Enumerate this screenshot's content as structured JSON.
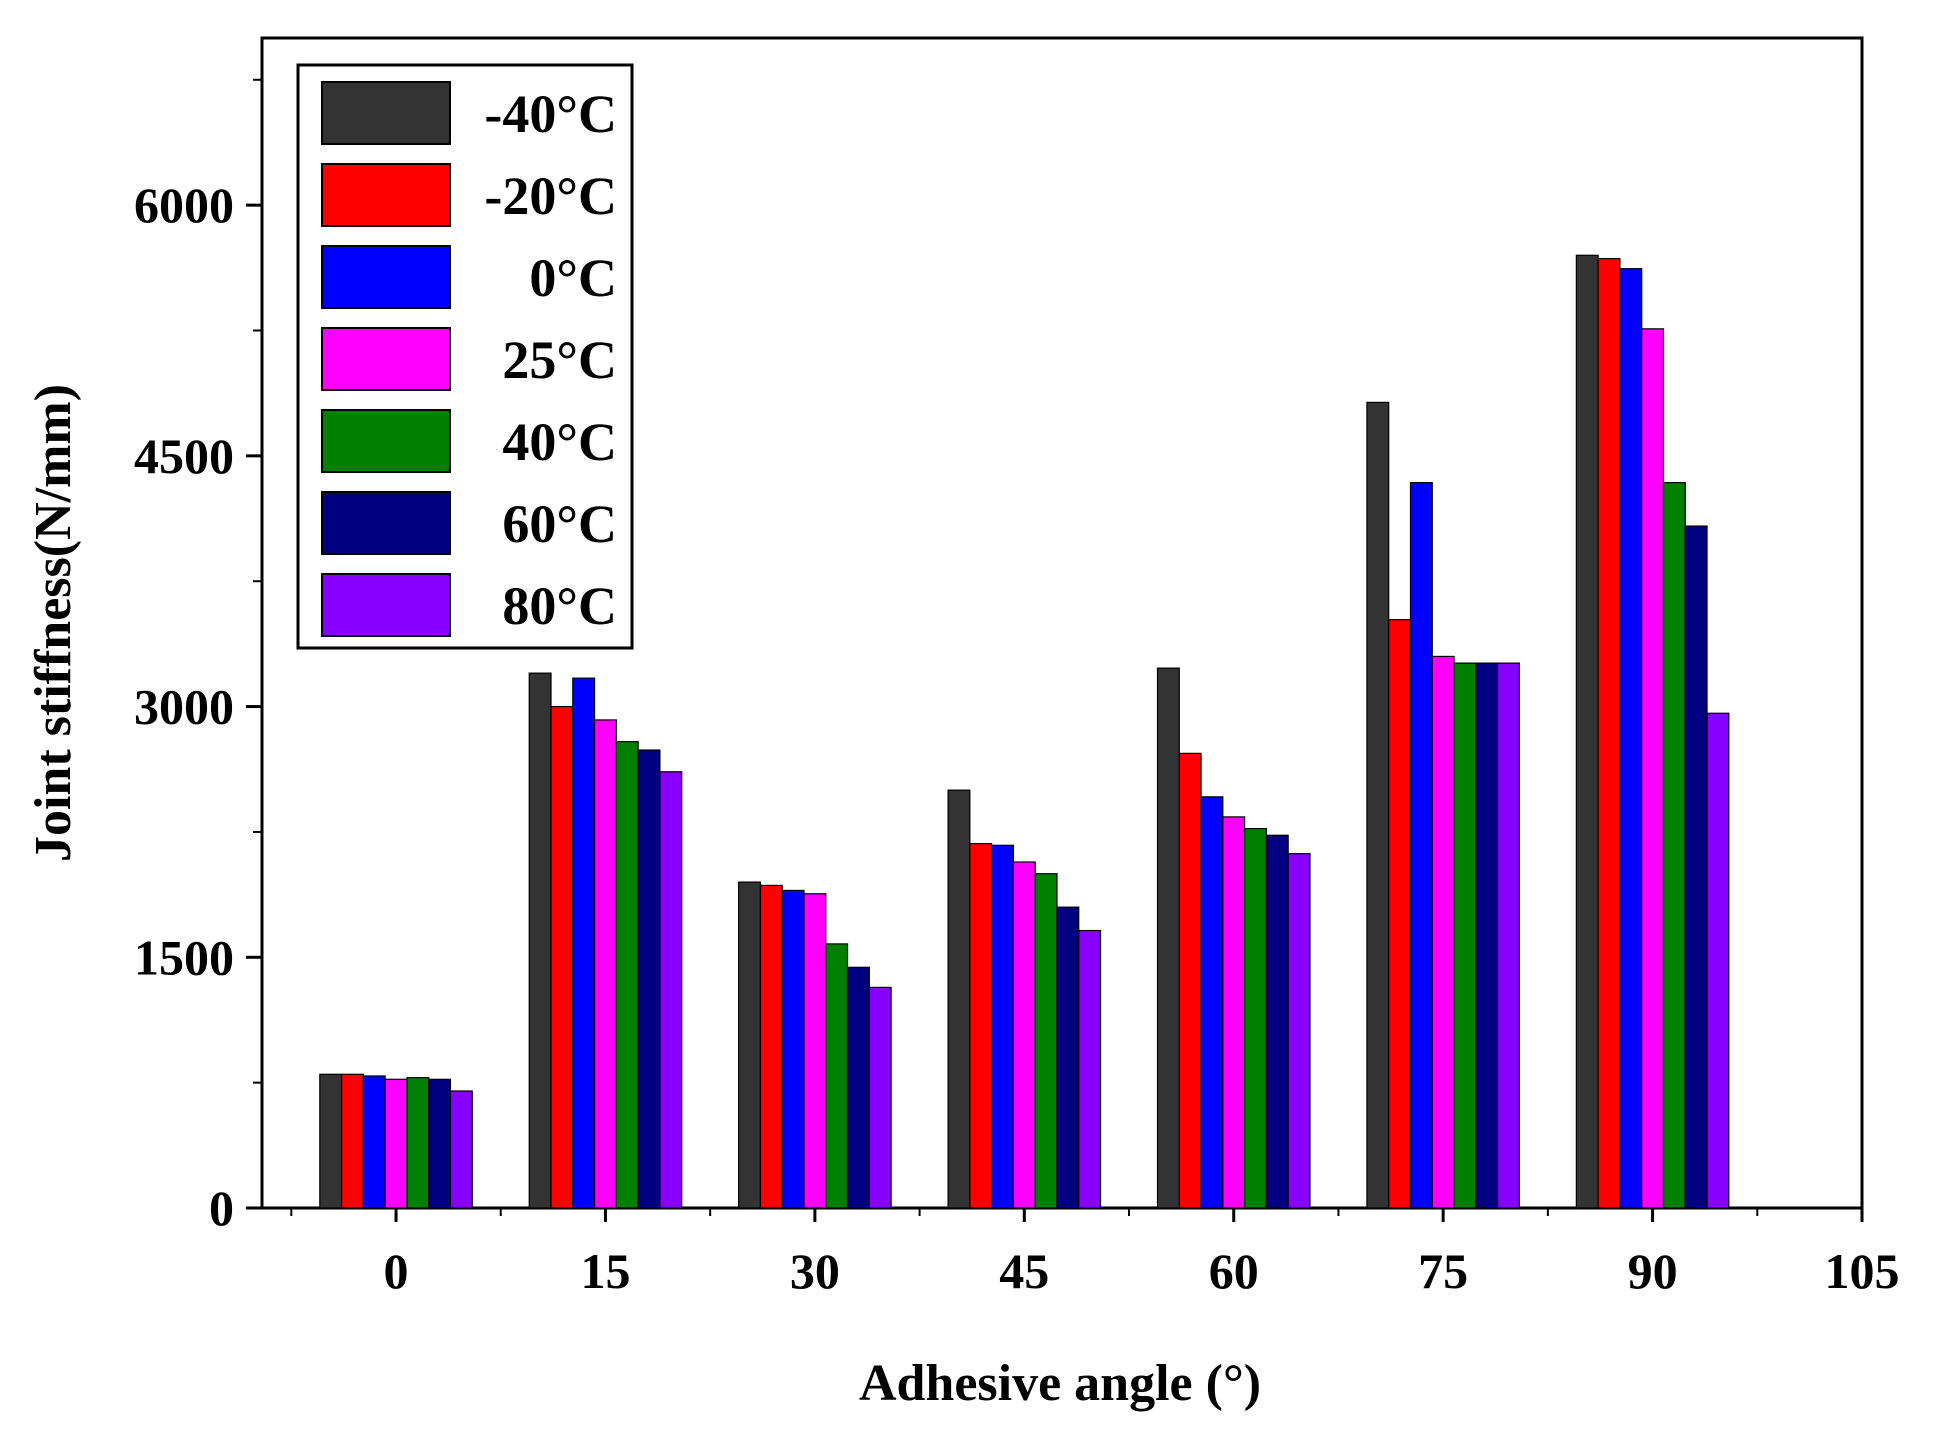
{
  "chart_data": {
    "type": "bar",
    "title": "",
    "xlabel": "Adhesive angle (°)",
    "ylabel": "Joint stiffness(N/mm)",
    "categories": [
      0,
      15,
      30,
      45,
      60,
      75,
      90
    ],
    "x_ticks": [
      "0",
      "15",
      "30",
      "45",
      "60",
      "75",
      "90",
      "105"
    ],
    "x_tick_values": [
      0,
      15,
      30,
      45,
      60,
      75,
      90,
      105
    ],
    "xlim": [
      -9.6,
      105
    ],
    "y_ticks": [
      "0",
      "1500",
      "3000",
      "4500",
      "6000"
    ],
    "y_tick_values": [
      0,
      1500,
      3000,
      4500,
      6000
    ],
    "ylim": [
      0,
      7000
    ],
    "grid": false,
    "legend_position": "top-left",
    "series": [
      {
        "name": "-40°C",
        "color": "#333333",
        "values": [
          800,
          3200,
          1950,
          2500,
          3230,
          4820,
          5700
        ]
      },
      {
        "name": "-20°C",
        "color": "#ff0000",
        "values": [
          800,
          3000,
          1930,
          2180,
          2720,
          3520,
          5680
        ]
      },
      {
        "name": "0°C",
        "color": "#0000ff",
        "values": [
          790,
          3170,
          1900,
          2170,
          2460,
          4340,
          5620
        ]
      },
      {
        "name": "25°C",
        "color": "#ff00ff",
        "values": [
          770,
          2920,
          1880,
          2070,
          2340,
          3300,
          5260
        ]
      },
      {
        "name": "40°C",
        "color": "#008000",
        "values": [
          780,
          2790,
          1580,
          2000,
          2270,
          3260,
          4340
        ]
      },
      {
        "name": "60°C",
        "color": "#000080",
        "values": [
          770,
          2740,
          1440,
          1800,
          2230,
          3260,
          4080
        ]
      },
      {
        "name": "80°C",
        "color": "#8800ff",
        "values": [
          700,
          2610,
          1320,
          1660,
          2120,
          3260,
          2960
        ]
      }
    ]
  }
}
